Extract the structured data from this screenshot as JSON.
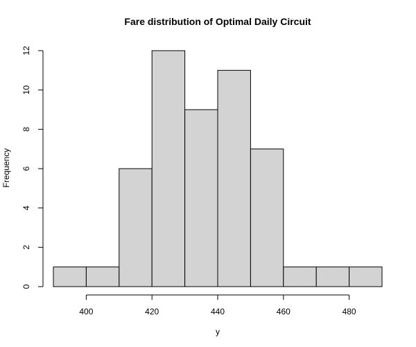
{
  "chart_data": {
    "type": "bar",
    "title": "Fare distribution of Optimal Daily Circuit",
    "xlabel": "y",
    "ylabel": "Frequency",
    "bin_edges": [
      390,
      400,
      410,
      420,
      430,
      440,
      450,
      460,
      470,
      480,
      490
    ],
    "values": [
      1,
      1,
      6,
      12,
      9,
      11,
      7,
      1,
      1,
      1
    ],
    "xlim": [
      390,
      490
    ],
    "ylim": [
      0,
      12
    ],
    "x_ticks": [
      400,
      420,
      440,
      460,
      480
    ],
    "y_ticks": [
      0,
      2,
      4,
      6,
      8,
      10,
      12
    ],
    "grid": false,
    "bar_fill": "#d3d3d3",
    "bar_stroke": "#000000"
  }
}
